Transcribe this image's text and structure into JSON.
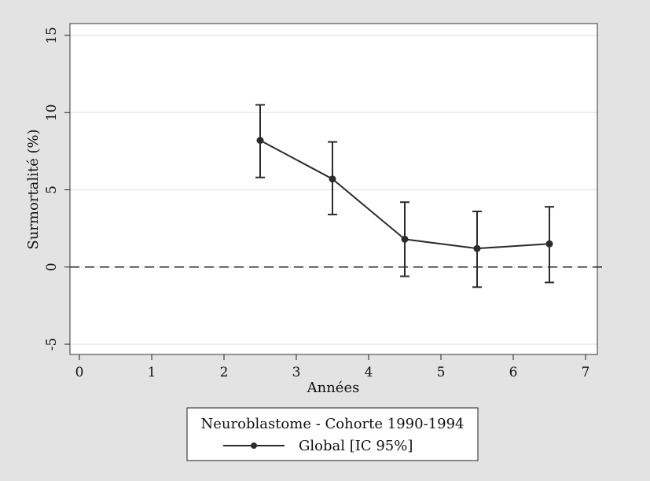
{
  "chart_data": {
    "type": "line",
    "title": "",
    "xlabel": "Années",
    "ylabel": "Surmortalité (%)",
    "xlim": [
      0,
      7
    ],
    "ylim": [
      -5,
      15
    ],
    "x_ticks": [
      0,
      1,
      2,
      3,
      4,
      5,
      6,
      7
    ],
    "y_ticks": [
      -5,
      0,
      5,
      10,
      15
    ],
    "grid": true,
    "reference_line": {
      "y": 0,
      "style": "dashed"
    },
    "legend": {
      "title": "Neuroblastome - Cohorte 1990-1994",
      "placement": "bottom-center"
    },
    "series": [
      {
        "name": "Global [IC 95%]",
        "color": "#2b2b2b",
        "points": [
          {
            "x": 2.5,
            "y": 8.2,
            "lower": 5.8,
            "upper": 10.5
          },
          {
            "x": 3.5,
            "y": 5.7,
            "lower": 3.4,
            "upper": 8.1
          },
          {
            "x": 4.5,
            "y": 1.8,
            "lower": -0.6,
            "upper": 4.2
          },
          {
            "x": 5.5,
            "y": 1.2,
            "lower": -1.3,
            "upper": 3.6
          },
          {
            "x": 6.5,
            "y": 1.5,
            "lower": -1.0,
            "upper": 3.9
          }
        ]
      }
    ]
  }
}
